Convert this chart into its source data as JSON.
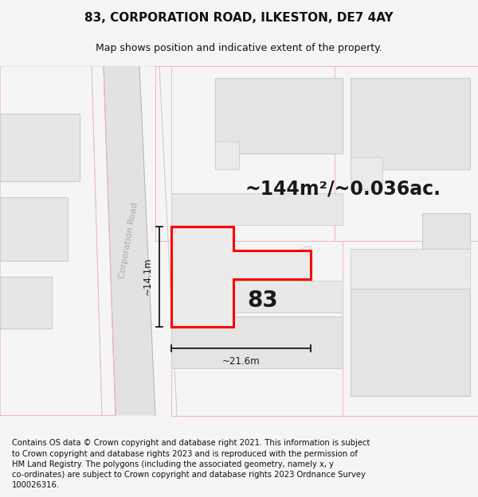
{
  "title": "83, CORPORATION ROAD, ILKESTON, DE7 4AY",
  "subtitle": "Map shows position and indicative extent of the property.",
  "area_text": "~144m²/~0.036ac.",
  "label_83": "83",
  "dim_width": "~21.6m",
  "dim_height": "~14.1m",
  "road_label": "Corporation Road",
  "footer": "Contains OS data © Crown copyright and database right 2021. This information is subject to Crown copyright and database rights 2023 and is reproduced with the permission of HM Land Registry. The polygons (including the associated geometry, namely x, y co-ordinates) are subject to Crown copyright and database rights 2023 Ordnance Survey 100026316.",
  "bg_color": "#f5f5f5",
  "map_bg": "#f8f8f8",
  "road_fill": "#e2e2e2",
  "building_fill": "#e4e4e4",
  "building_edge": "#cccccc",
  "outline_edge": "#f0b8b8",
  "highlight_fill": "#ebebeb",
  "highlight_edge": "#ff0000",
  "dim_line_color": "#1a1a1a",
  "road_label_color": "#aaaaaa",
  "title_fontsize": 11,
  "subtitle_fontsize": 9,
  "area_fontsize": 17,
  "label_fontsize": 20,
  "footer_fontsize": 7.2,
  "road_label_fontsize": 8
}
